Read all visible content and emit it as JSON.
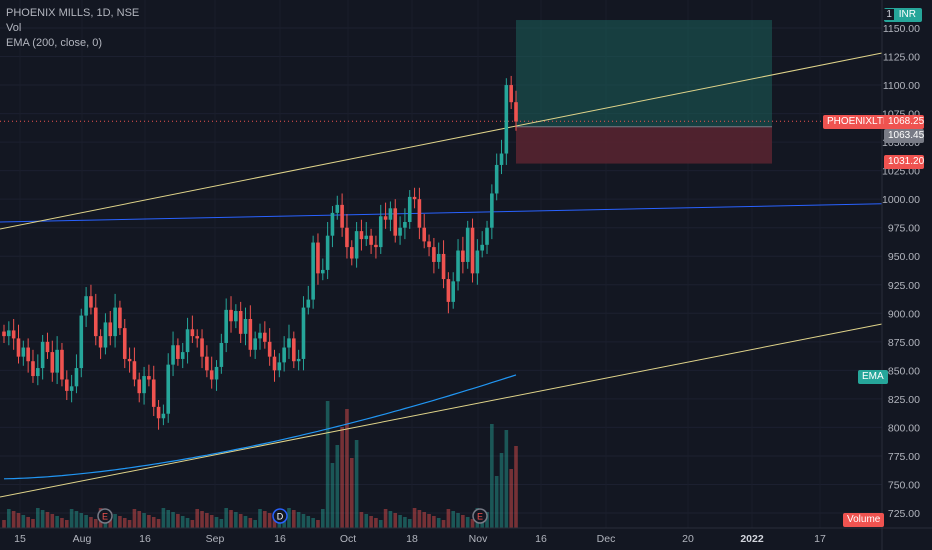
{
  "legend": {
    "symbol_line": "PHOENIX MILLS, 1D, NSE",
    "vol_label": "Vol",
    "ema_label": "EMA (200, close, 0)"
  },
  "currency": "INR",
  "currency_prefix": "1",
  "price_axis": {
    "ticks": [
      "1150.00",
      "1125.00",
      "1100.00",
      "1075.00",
      "1050.00",
      "1025.00",
      "1000.00",
      "975.00",
      "950.00",
      "925.00",
      "900.00",
      "875.00",
      "850.00",
      "825.00",
      "800.00",
      "775.00",
      "750.00",
      "725.00"
    ],
    "tick_values": [
      1150,
      1125,
      1100,
      1075,
      1050,
      1025,
      1000,
      975,
      950,
      925,
      900,
      875,
      850,
      825,
      800,
      775,
      750,
      725
    ]
  },
  "time_axis": {
    "labels": [
      "15",
      "Aug",
      "16",
      "Sep",
      "16",
      "Oct",
      "18",
      "Nov",
      "16",
      "Dec",
      "20",
      "2022",
      "17"
    ]
  },
  "labels": {
    "symbol_tag": "PHOENIXLTD",
    "last_price": "1068.25",
    "entry_price": "1063.45",
    "stop_price": "1031.20",
    "ema_tag": "EMA",
    "volume_tag": "Volume"
  },
  "events": [
    {
      "type": "earnings",
      "letter": "E"
    },
    {
      "type": "dividend",
      "letter": "D"
    },
    {
      "type": "earnings",
      "letter": "E"
    }
  ],
  "colors": {
    "background": "#131722",
    "up": "#26a69a",
    "down": "#ef5350",
    "ema": "#2196f3",
    "trendline": "#e0d48a",
    "hline": "#2962ff",
    "target_zone": "#1b5e59",
    "stop_zone": "#5a2530"
  },
  "chart_data": {
    "type": "candlestick",
    "symbol": "PHOENIX MILLS",
    "interval": "1D",
    "exchange": "NSE",
    "ylim": [
      718,
      1165
    ],
    "closes": [
      880,
      885,
      878,
      862,
      870,
      858,
      845,
      852,
      875,
      866,
      848,
      868,
      842,
      832,
      836,
      852,
      898,
      915,
      905,
      880,
      870,
      892,
      880,
      905,
      887,
      860,
      858,
      842,
      830,
      845,
      842,
      818,
      808,
      812,
      855,
      872,
      860,
      866,
      886,
      880,
      878,
      862,
      850,
      842,
      853,
      874,
      903,
      893,
      902,
      882,
      895,
      868,
      878,
      883,
      875,
      862,
      850,
      857,
      870,
      878,
      858,
      860,
      905,
      912,
      962,
      935,
      938,
      968,
      988,
      995,
      975,
      958,
      948,
      972,
      965,
      968,
      960,
      958,
      985,
      982,
      992,
      968,
      975,
      980,
      1002,
      1000,
      975,
      963,
      958,
      945,
      952,
      930,
      910,
      928,
      955,
      945,
      975,
      935,
      955,
      960,
      975,
      1005,
      1030,
      1040,
      1100,
      1085,
      1068
    ],
    "volume_pct": [
      1,
      1,
      1,
      1,
      1,
      1,
      1,
      1,
      1,
      1,
      1,
      1,
      1,
      1,
      1,
      1,
      1,
      1,
      1,
      1,
      1,
      1,
      1,
      1,
      1,
      1,
      1,
      1,
      1,
      1,
      1,
      1,
      1,
      1,
      1,
      1,
      1,
      1,
      1,
      1,
      1,
      1,
      1,
      1,
      1,
      1,
      1,
      1,
      1,
      1,
      1,
      1,
      1,
      1,
      1,
      1,
      1,
      1,
      1,
      1,
      1,
      1,
      1,
      1,
      1,
      1,
      1,
      1,
      1,
      1,
      1,
      1,
      1,
      1,
      1,
      1,
      1,
      1,
      1,
      1,
      1,
      1,
      1,
      1,
      1,
      1,
      1,
      1,
      1,
      1,
      1,
      1,
      1,
      1,
      1,
      1,
      1,
      1,
      1,
      1,
      1,
      1,
      1,
      1,
      1,
      1,
      1
    ],
    "ema_200": {
      "start": 755,
      "end": 846
    },
    "horizontal_line": 980,
    "long_position": {
      "target": 1157,
      "entry": 1063.45,
      "stop": 1031.2
    }
  }
}
